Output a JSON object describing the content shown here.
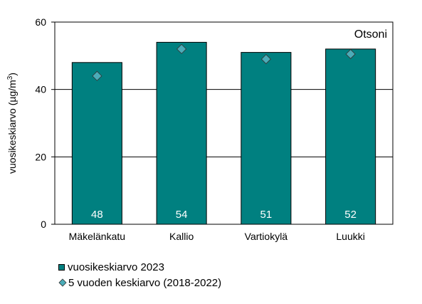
{
  "chart_data": {
    "type": "bar",
    "annotation": "Otsoni",
    "ylabel": "vuosikeskiarvo (µg/m³)",
    "ylabel_main": "vuosikeskiarvo (µg/m",
    "ylabel_sup": "3",
    "ylabel_end": ")",
    "ylim": [
      0,
      60
    ],
    "yticks": [
      "0",
      "20",
      "40",
      "60"
    ],
    "ytick_values": [
      0,
      20,
      40,
      60
    ],
    "grid": true,
    "categories": [
      "Mäkelänkatu",
      "Kallio",
      "Vartiokylä",
      "Luukki"
    ],
    "series": [
      {
        "name": "vuosikeskiarvo 2023",
        "type": "bar",
        "values": [
          48,
          54,
          51,
          52
        ],
        "labels": [
          "48",
          "54",
          "51",
          "52"
        ],
        "color": "#008080"
      },
      {
        "name": "5 vuoden keskiarvo (2018-2022)",
        "type": "scatter",
        "marker": "diamond",
        "values": [
          44,
          52,
          49,
          50.5
        ],
        "color": "#4BACB8"
      }
    ],
    "legend_position": "bottom-left"
  }
}
